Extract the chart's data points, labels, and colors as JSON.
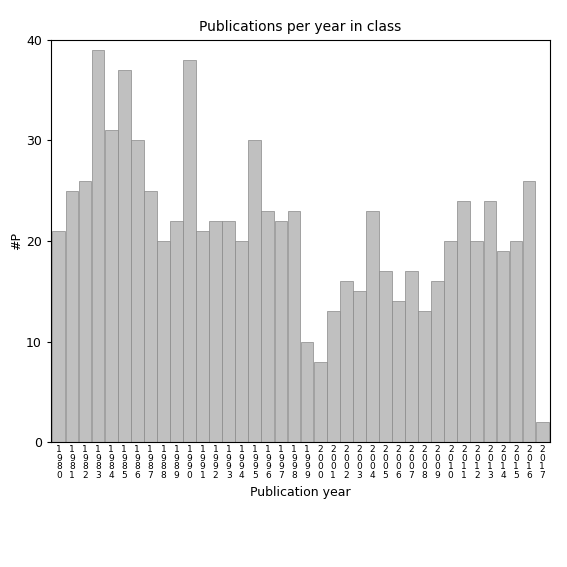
{
  "years": [
    1980,
    1981,
    1982,
    1983,
    1984,
    1985,
    1986,
    1987,
    1988,
    1989,
    1990,
    1991,
    1992,
    1993,
    1994,
    1995,
    1996,
    1997,
    1998,
    1999,
    2000,
    2001,
    2002,
    2003,
    2004,
    2005,
    2006,
    2007,
    2008,
    2009,
    2010,
    2011,
    2012,
    2013,
    2014,
    2015,
    2016,
    2017
  ],
  "values": [
    21,
    25,
    26,
    39,
    31,
    37,
    30,
    25,
    20,
    22,
    38,
    21,
    22,
    22,
    20,
    30,
    23,
    22,
    23,
    10,
    8,
    13,
    16,
    15,
    23,
    17,
    14,
    17,
    13,
    16,
    20,
    24,
    20,
    24,
    19,
    20,
    26,
    2
  ],
  "title": "Publications per year in class",
  "xlabel": "Publication year",
  "ylabel": "#P",
  "ylim": [
    0,
    40
  ],
  "bar_color": "#c0c0c0",
  "bar_edge_color": "#888888",
  "yticks": [
    0,
    10,
    20,
    30,
    40
  ],
  "background_color": "#ffffff",
  "figsize": [
    5.67,
    5.67
  ],
  "dpi": 100
}
